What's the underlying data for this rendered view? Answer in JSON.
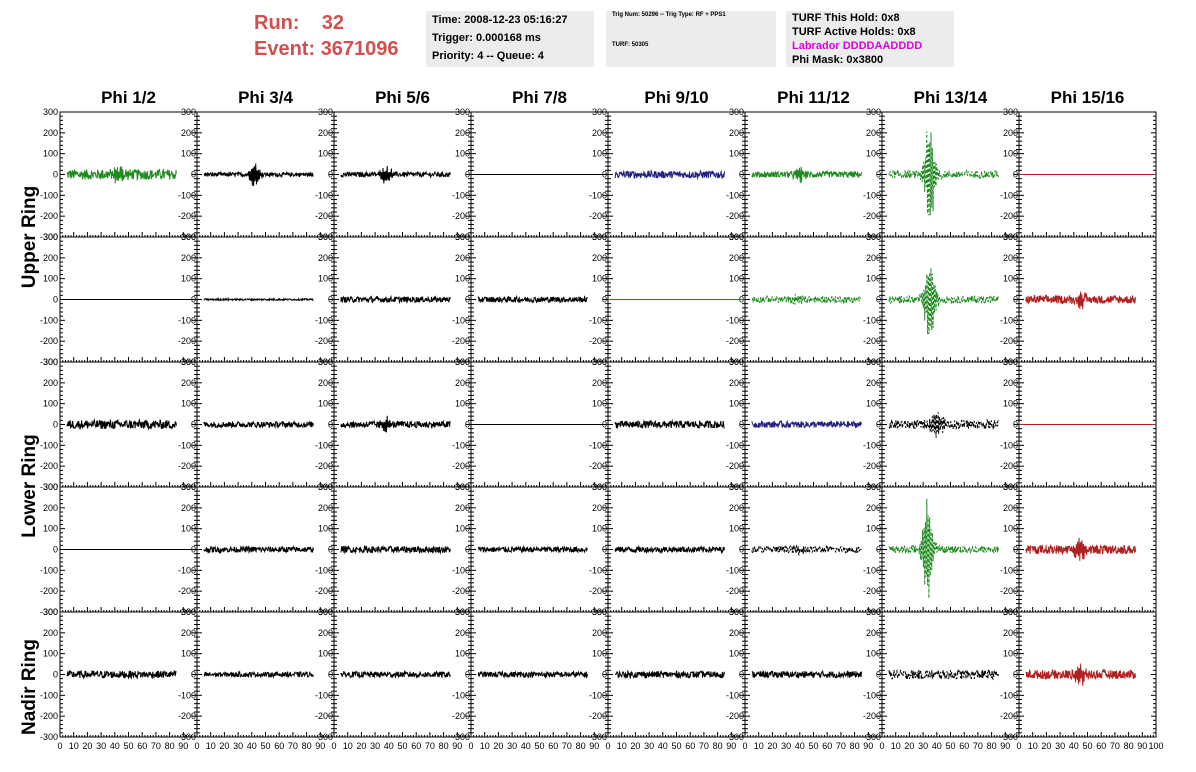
{
  "header": {
    "run_label": "Run:",
    "run_value": "32",
    "event_label": "Event:",
    "event_value": "3671096"
  },
  "time_box": {
    "time": "Time: 2008-12-23 05:16:27",
    "trigger": "Trigger: 0.000168 ms",
    "priority": "Priority: 4 -- Queue: 4"
  },
  "trig_box": {
    "line1": "Trig Num: 50296 -- Trig Type: RF + PPS1",
    "line2": "TURF: 50305"
  },
  "turf_box": {
    "this_hold": "TURF This Hold: 0x8",
    "active_holds": "TURF Active Holds: 0x8",
    "labrador": "Labrador DDDDAADDDD",
    "phi_mask": "Phi Mask: 0x3800"
  },
  "columns": [
    "Phi 1/2",
    "Phi 3/4",
    "Phi 5/6",
    "Phi 7/8",
    "Phi 9/10",
    "Phi 11/12",
    "Phi 13/14",
    "Phi 15/16"
  ],
  "row_labels": [
    "Upper Ring",
    "Lower Ring",
    "Nadir Ring"
  ],
  "y_ticks": [
    "300",
    "200",
    "100",
    "0",
    "-100",
    "-200",
    "-300"
  ],
  "x_ticks": [
    "0",
    "10",
    "20",
    "30",
    "40",
    "50",
    "60",
    "70",
    "80",
    "90",
    "100"
  ],
  "colors": {
    "green": "#1f8a1f",
    "blue": "#202080",
    "red": "#b02020",
    "black": "#000000",
    "run_text": "#d05050",
    "labrador": "#e000e0"
  },
  "chart_data": {
    "type": "line",
    "ylim": [
      -300,
      300
    ],
    "xlim": [
      0,
      100
    ],
    "panels": [
      [
        {
          "color": "green",
          "style": "solid",
          "amp": 25,
          "burst_center": 43,
          "burst_amp": 55
        },
        {
          "color": "black",
          "style": "solid",
          "amp": 10,
          "burst_center": 42,
          "burst_amp": 65
        },
        {
          "color": "black",
          "style": "solid",
          "amp": 12,
          "burst_center": 38,
          "burst_amp": 50
        },
        {
          "color": "black",
          "style": "solid",
          "amp": 0,
          "burst_center": 0,
          "burst_amp": 0
        },
        {
          "color": "blue",
          "style": "solid",
          "amp": 18,
          "burst_center": 0,
          "burst_amp": 0
        },
        {
          "color": "green",
          "style": "solid",
          "amp": 15,
          "burst_center": 40,
          "burst_amp": 45
        },
        {
          "color": "green",
          "style": "dashed",
          "amp": 18,
          "burst_center": 35,
          "burst_amp": 280
        },
        {
          "color": "red",
          "style": "solid",
          "amp": 0,
          "burst_center": 0,
          "burst_amp": 0
        }
      ],
      [
        {
          "color": "black",
          "style": "solid",
          "amp": 0,
          "burst_center": 0,
          "burst_amp": 0
        },
        {
          "color": "black",
          "style": "solid",
          "amp": 4,
          "burst_center": 0,
          "burst_amp": 0
        },
        {
          "color": "black",
          "style": "solid",
          "amp": 14,
          "burst_center": 0,
          "burst_amp": 0
        },
        {
          "color": "black",
          "style": "solid",
          "amp": 14,
          "burst_center": 0,
          "burst_amp": 0
        },
        {
          "color": "green",
          "style": "solid",
          "amp": 0,
          "burst_center": 0,
          "burst_amp": 0
        },
        {
          "color": "green",
          "style": "dashed",
          "amp": 16,
          "burst_center": 40,
          "burst_amp": 30
        },
        {
          "color": "green",
          "style": "dashed",
          "amp": 18,
          "burst_center": 35,
          "burst_amp": 240
        },
        {
          "color": "red",
          "style": "solid",
          "amp": 20,
          "burst_center": 45,
          "burst_amp": 35
        }
      ],
      [
        {
          "color": "black",
          "style": "solid",
          "amp": 22,
          "burst_center": 0,
          "burst_amp": 0
        },
        {
          "color": "black",
          "style": "solid",
          "amp": 14,
          "burst_center": 0,
          "burst_amp": 0
        },
        {
          "color": "black",
          "style": "solid",
          "amp": 16,
          "burst_center": 38,
          "burst_amp": 30
        },
        {
          "color": "black",
          "style": "solid",
          "amp": 0,
          "burst_center": 0,
          "burst_amp": 0
        },
        {
          "color": "black",
          "style": "solid",
          "amp": 18,
          "burst_center": 0,
          "burst_amp": 0
        },
        {
          "color": "blue",
          "style": "solid",
          "amp": 16,
          "burst_center": 0,
          "burst_amp": 0
        },
        {
          "color": "black",
          "style": "dashed",
          "amp": 22,
          "burst_center": 40,
          "burst_amp": 70
        },
        {
          "color": "red",
          "style": "solid",
          "amp": 0,
          "burst_center": 0,
          "burst_amp": 0
        }
      ],
      [
        {
          "color": "black",
          "style": "solid",
          "amp": 0,
          "burst_center": 0,
          "burst_amp": 0
        },
        {
          "color": "black",
          "style": "solid",
          "amp": 14,
          "burst_center": 0,
          "burst_amp": 0
        },
        {
          "color": "black",
          "style": "solid",
          "amp": 16,
          "burst_center": 0,
          "burst_amp": 0
        },
        {
          "color": "black",
          "style": "solid",
          "amp": 14,
          "burst_center": 0,
          "burst_amp": 0
        },
        {
          "color": "black",
          "style": "solid",
          "amp": 14,
          "burst_center": 0,
          "burst_amp": 0
        },
        {
          "color": "black",
          "style": "dashed",
          "amp": 16,
          "burst_center": 40,
          "burst_amp": 25
        },
        {
          "color": "green",
          "style": "dashed",
          "amp": 18,
          "burst_center": 33,
          "burst_amp": 260
        },
        {
          "color": "red",
          "style": "solid",
          "amp": 22,
          "burst_center": 45,
          "burst_amp": 70
        }
      ],
      [
        {
          "color": "black",
          "style": "solid",
          "amp": 18,
          "burst_center": 0,
          "burst_amp": 0
        },
        {
          "color": "black",
          "style": "solid",
          "amp": 12,
          "burst_center": 0,
          "burst_amp": 0
        },
        {
          "color": "black",
          "style": "solid",
          "amp": 14,
          "burst_center": 0,
          "burst_amp": 0
        },
        {
          "color": "black",
          "style": "solid",
          "amp": 14,
          "burst_center": 0,
          "burst_amp": 0
        },
        {
          "color": "black",
          "style": "solid",
          "amp": 16,
          "burst_center": 0,
          "burst_amp": 0
        },
        {
          "color": "black",
          "style": "solid",
          "amp": 16,
          "burst_center": 0,
          "burst_amp": 0
        },
        {
          "color": "black",
          "style": "dashed",
          "amp": 22,
          "burst_center": 0,
          "burst_amp": 0
        },
        {
          "color": "red",
          "style": "solid",
          "amp": 22,
          "burst_center": 45,
          "burst_amp": 60
        }
      ]
    ]
  }
}
